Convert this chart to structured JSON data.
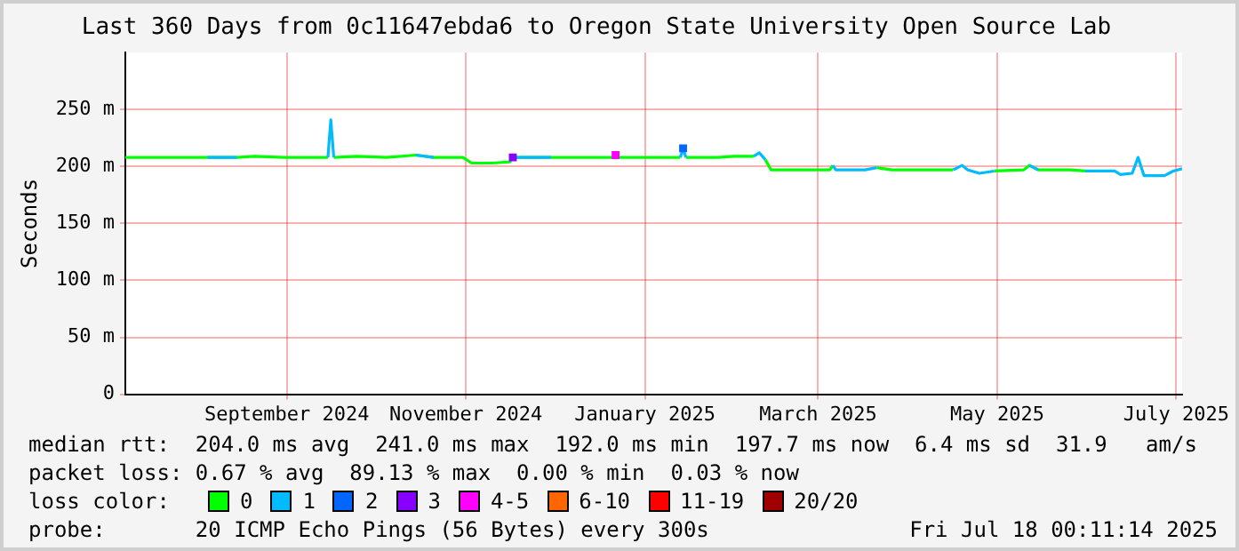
{
  "chart_data": {
    "type": "line",
    "title": "Last 360 Days from 0c11647ebda6 to Oregon State University Open Source Lab",
    "ylabel": "Seconds",
    "legend_title": "loss color:",
    "legend": "bottom",
    "grid": true,
    "x": [
      "2024-07-23",
      "2024-08-01",
      "2024-08-10",
      "2024-08-20",
      "2024-08-30",
      "2024-09-05",
      "2024-09-15",
      "2024-09-25",
      "2024-09-30",
      "2024-10-01",
      "2024-10-02",
      "2024-10-10",
      "2024-10-20",
      "2024-10-30",
      "2024-11-05",
      "2024-11-15",
      "2024-11-18",
      "2024-11-25",
      "2024-12-01",
      "2024-12-02",
      "2024-12-15",
      "2024-12-30",
      "2025-01-05",
      "2025-01-15",
      "2025-01-28",
      "2025-01-29",
      "2025-01-30",
      "2025-02-10",
      "2025-02-15",
      "2025-02-22",
      "2025-02-24",
      "2025-02-26",
      "2025-02-28",
      "2025-03-10",
      "2025-03-20",
      "2025-03-21",
      "2025-03-22",
      "2025-04-01",
      "2025-04-05",
      "2025-04-10",
      "2025-04-20",
      "2025-05-01",
      "2025-05-04",
      "2025-05-06",
      "2025-05-10",
      "2025-05-15",
      "2025-05-25",
      "2025-05-27",
      "2025-05-30",
      "2025-06-05",
      "2025-06-10",
      "2025-06-15",
      "2025-06-25",
      "2025-06-27",
      "2025-07-01",
      "2025-07-03",
      "2025-07-05",
      "2025-07-12",
      "2025-07-15",
      "2025-07-18"
    ],
    "series": [
      {
        "name": "0",
        "color": "#00ff00",
        "values": [
          208,
          208,
          208,
          208,
          208,
          209,
          208,
          208,
          208,
          null,
          208,
          209,
          208,
          210,
          208,
          208,
          203,
          203,
          204,
          208,
          208,
          208,
          208,
          208,
          208,
          null,
          208,
          208,
          209,
          209,
          null,
          206,
          197,
          197,
          197,
          201,
          null,
          null,
          199,
          197,
          197,
          197,
          null,
          null,
          null,
          196,
          197,
          201,
          197,
          197,
          197,
          196,
          null,
          null,
          null,
          null,
          null,
          null,
          null,
          null
        ]
      },
      {
        "name": "1",
        "color": "#00bbff",
        "values": [
          null,
          null,
          null,
          208,
          208,
          null,
          null,
          null,
          208,
          241,
          208,
          null,
          null,
          210,
          208,
          null,
          null,
          null,
          null,
          208,
          208,
          null,
          null,
          null,
          208,
          215,
          208,
          null,
          null,
          209,
          212,
          206,
          null,
          null,
          null,
          201,
          197,
          197,
          199,
          null,
          null,
          197,
          201,
          197,
          194,
          196,
          null,
          201,
          197,
          null,
          null,
          196,
          196,
          193,
          194,
          208,
          192,
          192,
          196,
          198
        ]
      },
      {
        "name": "2",
        "color": "#0066ff",
        "type": "scatter",
        "x": [
          "2025-01-29"
        ],
        "values": [
          216
        ]
      },
      {
        "name": "3",
        "color": "#8800ff",
        "type": "scatter",
        "x": [
          "2024-12-02"
        ],
        "values": [
          208
        ]
      },
      {
        "name": "4-5",
        "color": "#ff00ff",
        "type": "scatter",
        "x": [
          "2025-01-06"
        ],
        "values": [
          210
        ]
      },
      {
        "name": "6-10",
        "color": "#ff6600",
        "type": "scatter",
        "values": [
          null,
          null,
          null,
          null,
          null,
          null,
          null,
          null,
          null,
          null,
          null,
          null,
          null,
          null,
          null,
          null,
          null,
          null,
          null,
          null,
          null,
          null,
          null,
          null,
          null,
          null,
          null,
          null,
          null,
          null,
          null,
          null,
          null,
          null,
          null,
          null,
          null,
          null,
          null,
          null,
          null,
          null,
          null,
          null,
          null,
          null,
          null,
          null,
          null,
          null,
          null,
          null,
          null,
          null,
          null,
          null,
          null,
          null,
          null,
          null
        ]
      },
      {
        "name": "11-19",
        "color": "#ff0000",
        "type": "scatter",
        "values": [
          null,
          null,
          null,
          null,
          null,
          null,
          null,
          null,
          null,
          null,
          null,
          null,
          null,
          null,
          null,
          null,
          null,
          null,
          null,
          null,
          null,
          null,
          null,
          null,
          null,
          null,
          null,
          null,
          null,
          null,
          null,
          null,
          null,
          null,
          null,
          null,
          null,
          null,
          null,
          null,
          null,
          null,
          null,
          null,
          null,
          null,
          null,
          null,
          null,
          null,
          null,
          null,
          null,
          null,
          null,
          null,
          null,
          null,
          null,
          null
        ]
      },
      {
        "name": "20/20",
        "color": "#a00000",
        "type": "scatter",
        "values": [
          null,
          null,
          null,
          null,
          null,
          null,
          null,
          null,
          null,
          null,
          null,
          null,
          null,
          null,
          null,
          null,
          null,
          null,
          null,
          null,
          null,
          null,
          null,
          null,
          null,
          null,
          null,
          null,
          null,
          null,
          null,
          null,
          null,
          null,
          null,
          null,
          null,
          null,
          null,
          null,
          null,
          null,
          null,
          null,
          null,
          null,
          null,
          null,
          null,
          null,
          null,
          null,
          null,
          null,
          null,
          null,
          null,
          null,
          null,
          null
        ]
      }
    ],
    "xlim": [
      "2024-07-23",
      "2025-07-18"
    ],
    "xticks": [
      {
        "value": "2024-09-16",
        "label": "September 2024"
      },
      {
        "value": "2024-11-16",
        "label": "November 2024"
      },
      {
        "value": "2025-01-16",
        "label": "January 2025"
      },
      {
        "value": "2025-03-16",
        "label": "March 2025"
      },
      {
        "value": "2025-05-16",
        "label": "May 2025"
      },
      {
        "value": "2025-07-16",
        "label": "July 2025"
      }
    ],
    "ylim": [
      0,
      300
    ],
    "yticks": [
      0,
      {
        "value": 50,
        "label": "50 m"
      },
      {
        "value": 100,
        "label": "100 m"
      },
      {
        "value": 150,
        "label": "150 m"
      },
      {
        "value": 200,
        "label": "200 m"
      },
      {
        "value": 250,
        "label": "250 m"
      }
    ],
    "annotations": [
      "median rtt:  204.0 ms avg  241.0 ms max  192.0 ms min  197.7 ms now  6.4 ms sd  31.9   am/s",
      "packet loss: 0.67 % avg  89.13 % max  0.00 % min  0.03 % now",
      "probe:       20 ICMP Echo Pings (56 Bytes) every 300s",
      "Fri Jul 18 00:11:14 2025"
    ]
  }
}
